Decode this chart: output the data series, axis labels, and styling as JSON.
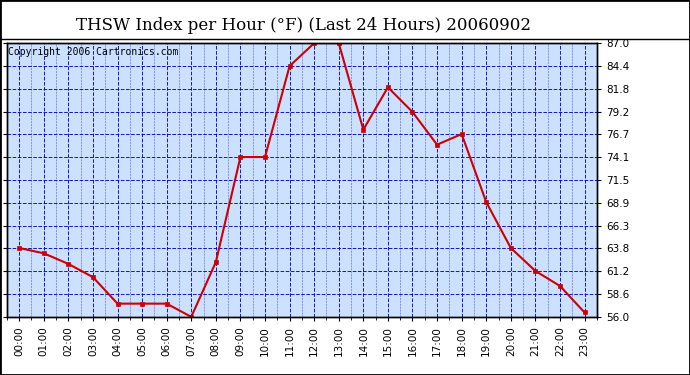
{
  "title": "THSW Index per Hour (°F) (Last 24 Hours) 20060902",
  "copyright": "Copyright 2006 Cartronics.com",
  "hours": [
    "00:00",
    "01:00",
    "02:00",
    "03:00",
    "04:00",
    "05:00",
    "06:00",
    "07:00",
    "08:00",
    "09:00",
    "10:00",
    "11:00",
    "12:00",
    "13:00",
    "14:00",
    "15:00",
    "16:00",
    "17:00",
    "18:00",
    "19:00",
    "20:00",
    "21:00",
    "22:00",
    "23:00"
  ],
  "values": [
    63.8,
    63.2,
    62.0,
    60.5,
    57.5,
    57.5,
    57.5,
    56.0,
    62.2,
    74.1,
    74.1,
    84.4,
    87.0,
    87.0,
    77.2,
    82.0,
    79.2,
    75.5,
    76.7,
    69.0,
    63.8,
    61.2,
    59.5,
    56.5
  ],
  "ylim": [
    56.0,
    87.0
  ],
  "yticks": [
    56.0,
    58.6,
    61.2,
    63.8,
    66.3,
    68.9,
    71.5,
    74.1,
    76.7,
    79.2,
    81.8,
    84.4,
    87.0
  ],
  "line_color": "#cc0000",
  "marker_color": "#cc0000",
  "bg_color": "#cce0ff",
  "grid_color_major": "#0000bb",
  "grid_color_minor": "#6666cc",
  "title_color": "#000000",
  "title_fontsize": 12,
  "copyright_fontsize": 7,
  "tick_fontsize": 7.5,
  "xlabel_fontsize": 7.5
}
